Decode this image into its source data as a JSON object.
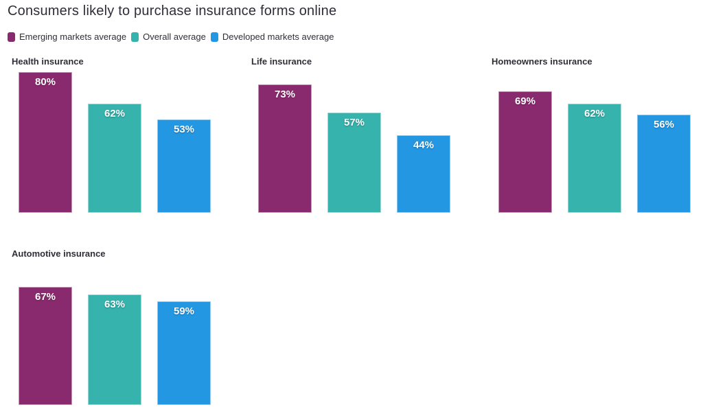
{
  "title": "Consumers likely to purchase insurance forms online",
  "colors": {
    "emerging_markets": "#8A2A6E",
    "overall": "#36B3AD",
    "developed_markets": "#2497E3",
    "text": "#2E2E38",
    "bar_label": "#FFFFFF",
    "background": "#FFFFFF"
  },
  "chart_data": {
    "type": "bar",
    "title": "Consumers likely to purchase insurance forms online",
    "series": [
      {
        "name": "Emerging markets average",
        "color": "#8A2A6E"
      },
      {
        "name": "Overall average",
        "color": "#36B3AD"
      },
      {
        "name": "Developed markets average",
        "color": "#2497E3"
      }
    ],
    "categories": [
      "Health insurance",
      "Life insurance",
      "Homeowners insurance",
      "Automotive insurance"
    ],
    "groups": [
      {
        "category": "Health insurance",
        "values": [
          80,
          62,
          53
        ]
      },
      {
        "category": "Life insurance",
        "values": [
          73,
          57,
          44
        ]
      },
      {
        "category": "Homeowners insurance",
        "values": [
          69,
          62,
          56
        ]
      },
      {
        "category": "Automotive insurance",
        "values": [
          67,
          63,
          59
        ]
      }
    ],
    "value_suffix": "%",
    "ylim": [
      0,
      100
    ],
    "grid": false,
    "axes_visible": false,
    "bar_labels_inside_top": true,
    "legend_position": "top-left"
  }
}
